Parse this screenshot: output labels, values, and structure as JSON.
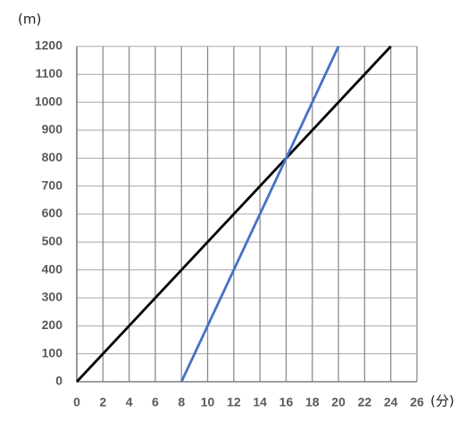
{
  "chart_data": {
    "type": "line",
    "y_label": "(m)",
    "x_label": "(分)",
    "series": [
      {
        "color": "#000000",
        "x": [
          0,
          24
        ],
        "values": [
          0,
          1200
        ]
      },
      {
        "color": "#4472c4",
        "x": [
          8,
          20
        ],
        "values": [
          0,
          1200
        ]
      }
    ],
    "xlim": [
      0,
      26
    ],
    "xticks": [
      0,
      2,
      4,
      6,
      8,
      10,
      12,
      14,
      16,
      18,
      20,
      22,
      24,
      26
    ],
    "ylim": [
      0,
      1200
    ],
    "yticks": [
      0,
      100,
      200,
      300,
      400,
      500,
      600,
      700,
      800,
      900,
      1000,
      1100,
      1200
    ],
    "grid": true
  }
}
